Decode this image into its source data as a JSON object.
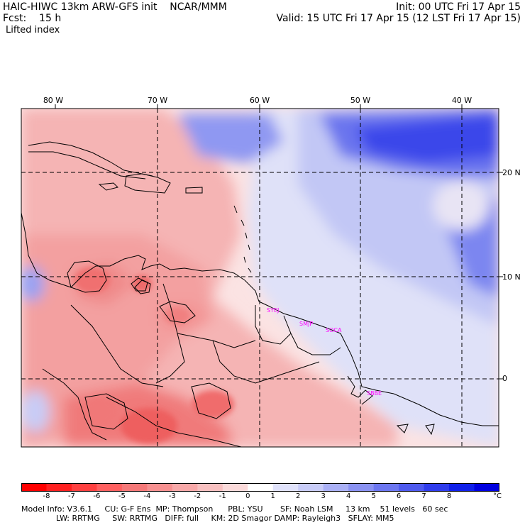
{
  "header": {
    "title_left": "HAIC-HIWC 13km ARW-GFS init    NCAR/MMM",
    "fcst_label": "Fcst:    15 h",
    "field": "Lifted index",
    "init": "Init: 00 UTC Fri 17 Apr 15",
    "valid": "Valid: 15 UTC Fri 17 Apr 15 (12 LST Fri 17 Apr 15)"
  },
  "map": {
    "lon_labels": [
      "80 W",
      "70 W",
      "60 W",
      "50 W",
      "40 W"
    ],
    "lat_labels": [
      "20 N",
      "10 N",
      "0"
    ],
    "stations": [
      "SYEJ",
      "SMJP",
      "SOCA",
      "SBBE"
    ],
    "colors": {
      "neg_strong": "#ff3333",
      "neg_mid": "#f48a8a",
      "neg_light": "#f7c6c6",
      "neutral": "#fbeaea",
      "pos_light": "#dde0f8",
      "pos_mid": "#8f98f2",
      "pos_strong": "#3a44ea",
      "station": "#ff00ff"
    }
  },
  "colorbar": {
    "ticks": [
      "-8",
      "-7",
      "-6",
      "-5",
      "-4",
      "-3",
      "-2",
      "-1",
      "0",
      "1",
      "2",
      "3",
      "4",
      "5",
      "6",
      "7",
      "8"
    ],
    "unit": "°C",
    "colors": [
      "#ff0000",
      "#ff2020",
      "#ff4040",
      "#ff6060",
      "#f57878",
      "#f79090",
      "#f8a8a8",
      "#f8c0c0",
      "#fbdada",
      "#ffffff",
      "#e0e2fb",
      "#c8ccf8",
      "#aab0f6",
      "#8a92f2",
      "#6c76f0",
      "#4e5aee",
      "#2f3cec",
      "#1020ea",
      "#0000e0"
    ]
  },
  "footer": {
    "line1": "Model Info: V3.6.1     CU: G-F Ens  MP: Thompson      PBL: YSU       SF: Noah LSM     13 km    51 levels   60 sec",
    "line2": "              LW: RRTMG     SW: RRTMG   DIFF: full     KM: 2D Smagor DAMP: Rayleigh3   SFLAY: MM5"
  }
}
